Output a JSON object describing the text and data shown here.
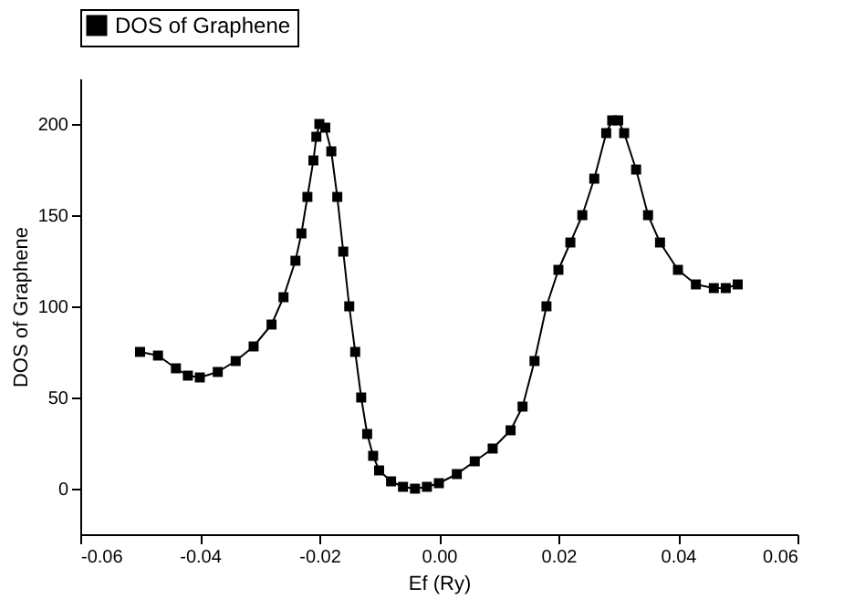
{
  "chart_data": {
    "type": "line",
    "xlabel": "Ef (Ry)",
    "ylabel": "DOS of Graphene",
    "x": [
      -0.05,
      -0.047,
      -0.044,
      -0.042,
      -0.04,
      -0.037,
      -0.034,
      -0.031,
      -0.028,
      -0.026,
      -0.024,
      -0.023,
      -0.022,
      -0.021,
      -0.0205,
      -0.02,
      -0.019,
      -0.018,
      -0.017,
      -0.016,
      -0.015,
      -0.014,
      -0.013,
      -0.012,
      -0.011,
      -0.01,
      -0.008,
      -0.006,
      -0.004,
      -0.002,
      0,
      0.003,
      0.006,
      0.009,
      0.012,
      0.014,
      0.016,
      0.018,
      0.02,
      0.022,
      0.024,
      0.026,
      0.028,
      0.029,
      0.03,
      0.031,
      0.033,
      0.035,
      0.037,
      0.04,
      0.043,
      0.046,
      0.048,
      0.05
    ],
    "series": [
      {
        "name": "DOS of Graphene",
        "color": "#000000",
        "values": [
          75,
          73,
          66,
          62,
          61,
          64,
          70,
          78,
          90,
          105,
          125,
          140,
          160,
          180,
          193,
          200,
          198,
          185,
          160,
          130,
          100,
          75,
          50,
          30,
          18,
          10,
          4,
          1,
          0,
          1,
          3,
          8,
          15,
          22,
          32,
          45,
          70,
          100,
          120,
          135,
          150,
          170,
          195,
          202,
          202,
          195,
          175,
          150,
          135,
          120,
          112,
          110,
          110,
          112
        ]
      }
    ],
    "xlim": [
      -0.06,
      0.06
    ],
    "xticks": [
      {
        "value": -0.06,
        "label": "-0.06"
      },
      {
        "value": -0.04,
        "label": "-0.04"
      },
      {
        "value": -0.02,
        "label": "-0.02"
      },
      {
        "value": 0,
        "label": "0.00"
      },
      {
        "value": 0.02,
        "label": "0.02"
      },
      {
        "value": 0.04,
        "label": "0.04"
      },
      {
        "value": 0.06,
        "label": "0.06"
      }
    ],
    "ylim": [
      -25,
      225
    ],
    "yticks": [
      0,
      50,
      100,
      150,
      200
    ],
    "grid": false,
    "legend": "top",
    "marker": "square",
    "line_style": "solid"
  }
}
